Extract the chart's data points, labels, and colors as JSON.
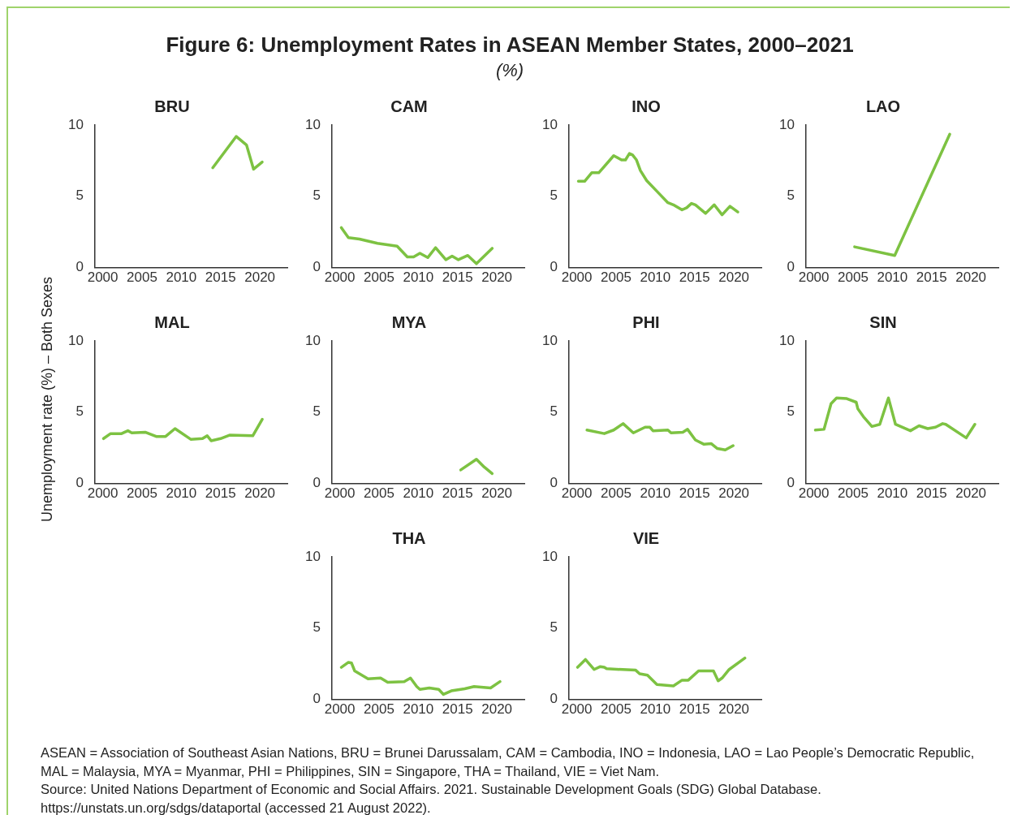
{
  "chart_data": [
    {
      "type": "other",
      "title": "Figure 6: Unemployment Rates in ASEAN Member States, 2000–2021",
      "subtitle": "(%)",
      "ylabel": "Unemployment rate (%) – Both Sexes",
      "annotations": [
        "ASEAN = Association of Southeast Asian Nations, BRU = Brunei Darussalam, CAM = Cambodia, INO = Indonesia, LAO = Lao People’s Democratic Republic, MAL = Malaysia, MYA = Myanmar, PHI = Philippines, SIN = Singapore, THA = Thailand, VIE = Viet Nam.",
        "Source: United Nations Department of Economic and Social Affairs. 2021. Sustainable Development Goals (SDG) Global Database. https://unstats.un.org/sdgs/dataportal (accessed 21 August 2022)."
      ]
    },
    {
      "type": "line",
      "title": "BRU",
      "color": "#7dc242",
      "xlim": [
        1999,
        2023.5
      ],
      "xticks": [
        2000,
        2005,
        2010,
        2015,
        2020
      ],
      "ylim": [
        0,
        10
      ],
      "yticks": [
        0,
        5,
        10
      ],
      "x": [
        2014,
        2017,
        2018.3,
        2019.2,
        2020.3
      ],
      "values": [
        7.0,
        9.2,
        8.6,
        6.9,
        7.4
      ]
    },
    {
      "type": "line",
      "title": "CAM",
      "color": "#7dc242",
      "xlim": [
        1999,
        2023.5
      ],
      "xticks": [
        2000,
        2005,
        2010,
        2015,
        2020
      ],
      "ylim": [
        0,
        10
      ],
      "yticks": [
        0,
        5,
        10
      ],
      "x": [
        2000.2,
        2001.1,
        2002.5,
        2004.8,
        2007.3,
        2008.6,
        2009.4,
        2010.2,
        2011.2,
        2012.2,
        2013.5,
        2014.3,
        2015.1,
        2016.3,
        2017.4,
        2019.4
      ],
      "values": [
        2.8,
        2.1,
        2.0,
        1.7,
        1.5,
        0.75,
        0.75,
        1.0,
        0.7,
        1.4,
        0.55,
        0.8,
        0.55,
        0.85,
        0.27,
        1.35
      ]
    },
    {
      "type": "line",
      "title": "INO",
      "color": "#7dc242",
      "xlim": [
        1999,
        2023.5
      ],
      "xticks": [
        2000,
        2005,
        2010,
        2015,
        2020
      ],
      "ylim": [
        0,
        10
      ],
      "yticks": [
        0,
        5,
        10
      ],
      "x": [
        2000.2,
        2001,
        2001.9,
        2002.8,
        2004.7,
        2005.7,
        2006.2,
        2006.7,
        2007.1,
        2007.6,
        2008.1,
        2008.9,
        2010.2,
        2011.6,
        2012.3,
        2013.4,
        2014,
        2014.6,
        2015.1,
        2016.4,
        2017.5,
        2018.5,
        2019.5,
        2020.5
      ],
      "values": [
        6.05,
        6.05,
        6.65,
        6.65,
        7.85,
        7.55,
        7.55,
        8.0,
        7.9,
        7.55,
        6.8,
        6.1,
        5.35,
        4.55,
        4.4,
        4.05,
        4.2,
        4.5,
        4.4,
        3.8,
        4.4,
        3.7,
        4.3,
        3.9
      ]
    },
    {
      "type": "line",
      "title": "LAO",
      "color": "#7dc242",
      "xlim": [
        1999,
        2023.5
      ],
      "xticks": [
        2000,
        2005,
        2010,
        2015,
        2020
      ],
      "ylim": [
        0,
        10
      ],
      "yticks": [
        0,
        5,
        10
      ],
      "x": [
        2005.2,
        2010.3,
        2017.3
      ],
      "values": [
        1.45,
        0.85,
        9.35
      ]
    },
    {
      "type": "line",
      "title": "MAL",
      "color": "#7dc242",
      "xlim": [
        1999,
        2023.5
      ],
      "xticks": [
        2000,
        2005,
        2010,
        2015,
        2020
      ],
      "ylim": [
        0,
        10
      ],
      "yticks": [
        0,
        5,
        10
      ],
      "x": [
        2000.1,
        2001,
        2002.4,
        2003.2,
        2003.7,
        2005.4,
        2006.8,
        2008,
        2009.2,
        2011.2,
        2012.7,
        2013.3,
        2013.8,
        2015,
        2016.2,
        2019.1,
        2020.3
      ],
      "values": [
        3.15,
        3.5,
        3.5,
        3.7,
        3.55,
        3.6,
        3.3,
        3.3,
        3.85,
        3.1,
        3.15,
        3.35,
        3.0,
        3.15,
        3.4,
        3.35,
        4.5
      ]
    },
    {
      "type": "line",
      "title": "MYA",
      "color": "#7dc242",
      "xlim": [
        1999,
        2023.5
      ],
      "xticks": [
        2000,
        2005,
        2010,
        2015,
        2020
      ],
      "ylim": [
        0,
        10
      ],
      "yticks": [
        0,
        5,
        10
      ],
      "x": [
        2015.4,
        2017.4,
        2018.4,
        2019.4
      ],
      "values": [
        0.95,
        1.7,
        1.15,
        0.7
      ]
    },
    {
      "type": "line",
      "title": "PHI",
      "color": "#7dc242",
      "xlim": [
        1999,
        2023.5
      ],
      "xticks": [
        2000,
        2005,
        2010,
        2015,
        2020
      ],
      "ylim": [
        0,
        10
      ],
      "yticks": [
        0,
        5,
        10
      ],
      "x": [
        2001.3,
        2003.5,
        2004.7,
        2005.9,
        2007.2,
        2008.7,
        2009.3,
        2009.7,
        2011.6,
        2012,
        2013.5,
        2014.1,
        2015.1,
        2016.2,
        2017.1,
        2017.9,
        2018.9,
        2019.9
      ],
      "values": [
        3.75,
        3.5,
        3.75,
        4.2,
        3.55,
        3.95,
        3.95,
        3.7,
        3.75,
        3.55,
        3.6,
        3.8,
        3.05,
        2.75,
        2.8,
        2.45,
        2.35,
        2.65
      ]
    },
    {
      "type": "line",
      "title": "SIN",
      "color": "#7dc242",
      "xlim": [
        1999,
        2023.5
      ],
      "xticks": [
        2000,
        2005,
        2010,
        2015,
        2020
      ],
      "ylim": [
        0,
        10
      ],
      "yticks": [
        0,
        5,
        10
      ],
      "x": [
        2000.2,
        2001.3,
        2002.2,
        2002.9,
        2004.2,
        2005.4,
        2005.6,
        2006.3,
        2007.4,
        2008.4,
        2009.5,
        2010.4,
        2012.3,
        2013.4,
        2014.5,
        2015.5,
        2016.4,
        2016.8,
        2019.4,
        2020.5
      ],
      "values": [
        3.75,
        3.8,
        5.6,
        6.0,
        5.95,
        5.7,
        5.25,
        4.7,
        4.0,
        4.15,
        6.0,
        4.15,
        3.7,
        4.05,
        3.85,
        3.95,
        4.2,
        4.15,
        3.2,
        4.15
      ]
    },
    {
      "type": "line",
      "title": "THA",
      "color": "#7dc242",
      "xlim": [
        1999,
        2023.5
      ],
      "xticks": [
        2000,
        2005,
        2010,
        2015,
        2020
      ],
      "ylim": [
        0,
        10
      ],
      "yticks": [
        0,
        5,
        10
      ],
      "x": [
        2000.2,
        2001.1,
        2001.5,
        2001.9,
        2003.6,
        2005.2,
        2006.1,
        2008.2,
        2009,
        2009.8,
        2010.2,
        2011.4,
        2012.6,
        2013.2,
        2014.2,
        2015.9,
        2017.1,
        2019.2,
        2020.4
      ],
      "values": [
        2.25,
        2.6,
        2.55,
        2.0,
        1.45,
        1.5,
        1.2,
        1.25,
        1.5,
        0.9,
        0.7,
        0.8,
        0.7,
        0.35,
        0.6,
        0.75,
        0.9,
        0.8,
        1.25
      ]
    },
    {
      "type": "line",
      "title": "VIE",
      "color": "#7dc242",
      "xlim": [
        1999,
        2023.5
      ],
      "xticks": [
        2000,
        2005,
        2010,
        2015,
        2020
      ],
      "ylim": [
        0,
        10
      ],
      "yticks": [
        0,
        5,
        10
      ],
      "x": [
        2000.1,
        2001.1,
        2002.2,
        2003,
        2003.5,
        2003.8,
        2007.5,
        2008,
        2009,
        2010.2,
        2012.3,
        2013.4,
        2014.2,
        2015.5,
        2017.4,
        2018,
        2018.5,
        2019.4,
        2021.4
      ],
      "values": [
        2.25,
        2.8,
        2.1,
        2.3,
        2.25,
        2.15,
        2.05,
        1.8,
        1.7,
        1.05,
        0.95,
        1.35,
        1.35,
        2.0,
        2.0,
        1.3,
        1.5,
        2.1,
        2.9
      ]
    }
  ]
}
